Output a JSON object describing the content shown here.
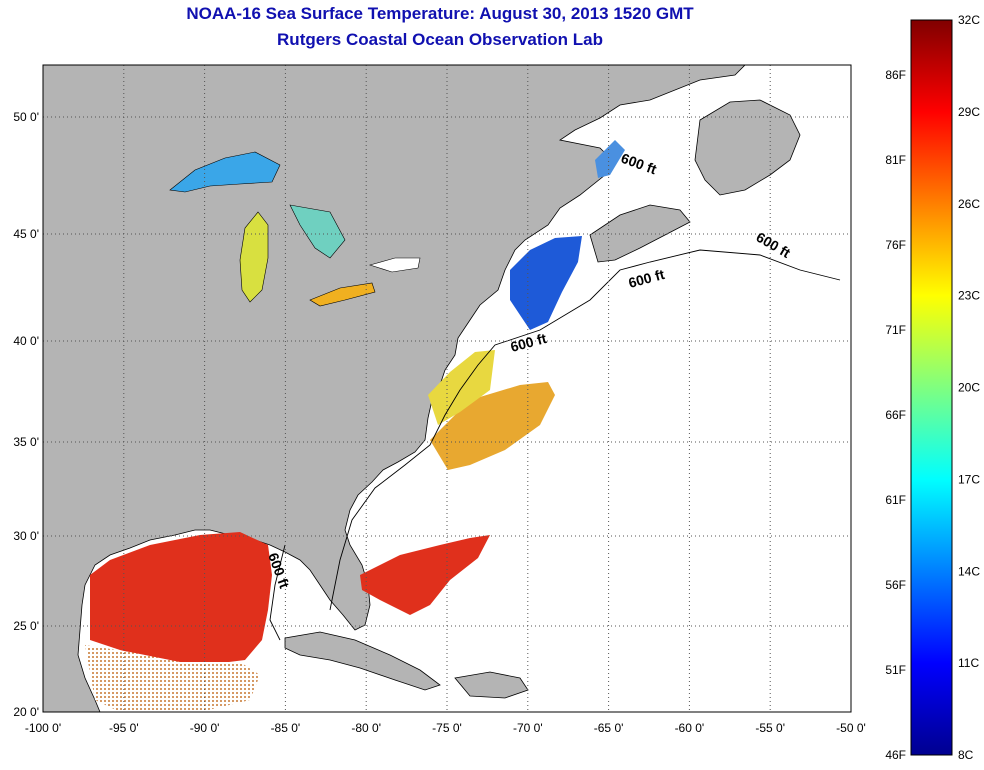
{
  "header": {
    "title": "NOAA-16 Sea Surface Temperature:  August 30, 2013 1520 GMT",
    "subtitle": "Rutgers Coastal Ocean Observation Lab"
  },
  "map": {
    "lon_ticks": [
      "-100 0'",
      "-95 0'",
      "-90 0'",
      "-85 0'",
      "-80 0'",
      "-75 0'",
      "-70 0'",
      "-65 0'",
      "-60 0'",
      "-55 0'",
      "-50 0'"
    ],
    "lat_ticks": [
      "50 0'",
      "45 0'",
      "40 0'",
      "35 0'",
      "30 0'",
      "25 0'",
      "20 0'"
    ],
    "contour_label": "600 ft",
    "land_color": "#b4b4b4",
    "ocean_color": "#ffffff"
  },
  "colorbar": {
    "celsius_labels": [
      "32C",
      "29C",
      "26C",
      "23C",
      "20C",
      "17C",
      "14C",
      "11C",
      "8C"
    ],
    "fahrenheit_labels": [
      "86F",
      "81F",
      "76F",
      "71F",
      "66F",
      "61F",
      "56F",
      "51F",
      "46F"
    ],
    "colormap": "jet"
  }
}
